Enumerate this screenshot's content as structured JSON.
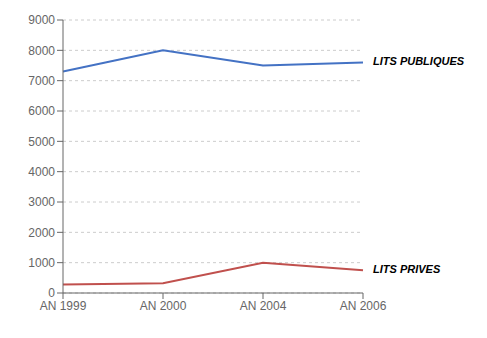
{
  "chart_data": {
    "type": "line",
    "categories": [
      "AN 1999",
      "AN 2000",
      "AN 2004",
      "AN 2006"
    ],
    "series": [
      {
        "name": "LITS PUBLIQUES",
        "color": "#4472C4",
        "values": [
          7300,
          8000,
          7500,
          7600
        ]
      },
      {
        "name": "LITS PRIVES",
        "color": "#C0504D",
        "values": [
          280,
          320,
          1000,
          750
        ]
      }
    ],
    "ylim": [
      0,
      9000
    ],
    "yticks": [
      0,
      1000,
      2000,
      3000,
      4000,
      5000,
      6000,
      7000,
      8000,
      9000
    ],
    "grid": true
  }
}
